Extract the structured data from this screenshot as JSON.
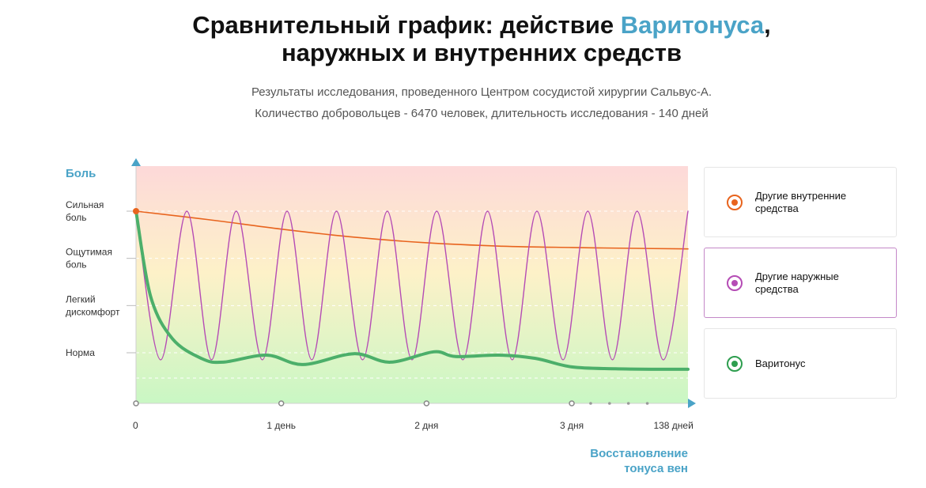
{
  "header": {
    "title_before": "Сравнительный график: действие ",
    "title_accent": "Варитонуса",
    "title_after": ",",
    "title_line2": "наружных и внутренних средств",
    "subtitle_line1": "Результаты исследования, проведенного Центром сосудистой хирургии Сальвус-А.",
    "subtitle_line2": "Количество добровольцев - 6470 человек, длительность исследования - 140 дней"
  },
  "colors": {
    "accent": "#4aa3c7",
    "internal": "#e8641e",
    "external": "#b54cb5",
    "varitonus": "#4caf6a",
    "bg_top": "#fdd9d9",
    "bg_bottom": "#c9f7c4"
  },
  "legend": [
    {
      "label": "Другие внутренние средства",
      "color": "#e8641e",
      "active": false
    },
    {
      "label": "Другие наружные средства",
      "color": "#b54cb5",
      "active": true
    },
    {
      "label": "Варитонус",
      "color": "#2e9e4f",
      "active": false
    }
  ],
  "chart_data": {
    "type": "line",
    "ylabel": "Боль",
    "xlabel": "Восстановление тонуса вен",
    "y_categories": [
      "Норма",
      "Легкий дискомфорт",
      "Ощутимая боль",
      "Сильная боль"
    ],
    "x_ticks": [
      {
        "label": "0",
        "t": 0
      },
      {
        "label": "1 день",
        "t": 1
      },
      {
        "label": "2 дня",
        "t": 2
      },
      {
        "label": "3 дня",
        "t": 3
      },
      {
        "label": "138 дней",
        "t": 3.7
      }
    ],
    "x_range": [
      0,
      3.8
    ],
    "y_range": [
      -0.6,
      3.6
    ],
    "series": [
      {
        "name": "Другие внутренние средства",
        "color": "#e8641e",
        "x": [
          0,
          0.5,
          1,
          1.5,
          2,
          2.5,
          3,
          3.5,
          3.8
        ],
        "y": [
          3,
          2.82,
          2.62,
          2.45,
          2.33,
          2.26,
          2.23,
          2.21,
          2.2
        ]
      },
      {
        "name": "Другие наружные средства",
        "color": "#b54cb5",
        "x": [
          0,
          0.17,
          0.35,
          0.52,
          0.69,
          0.87,
          1.04,
          1.21,
          1.38,
          1.56,
          1.73,
          1.9,
          2.07,
          2.25,
          2.42,
          2.59,
          2.76,
          2.94,
          3.11,
          3.28,
          3.45,
          3.63,
          3.8
        ],
        "y": [
          3,
          -0.15,
          3,
          -0.15,
          3,
          -0.15,
          3,
          -0.15,
          3,
          -0.15,
          3,
          -0.15,
          3,
          -0.15,
          3,
          -0.15,
          3,
          -0.15,
          3,
          -0.15,
          3,
          -0.15,
          3
        ]
      },
      {
        "name": "Варитонус",
        "color": "#4caf6a",
        "x": [
          0,
          0.1,
          0.25,
          0.45,
          0.6,
          0.9,
          1.15,
          1.5,
          1.75,
          2.05,
          2.2,
          2.5,
          2.75,
          3.0,
          3.3,
          3.6,
          3.8
        ],
        "y": [
          3,
          1.2,
          0.3,
          -0.12,
          -0.2,
          -0.05,
          -0.25,
          -0.02,
          -0.2,
          0.02,
          -0.08,
          -0.05,
          -0.12,
          -0.3,
          -0.34,
          -0.35,
          -0.35
        ]
      }
    ]
  }
}
